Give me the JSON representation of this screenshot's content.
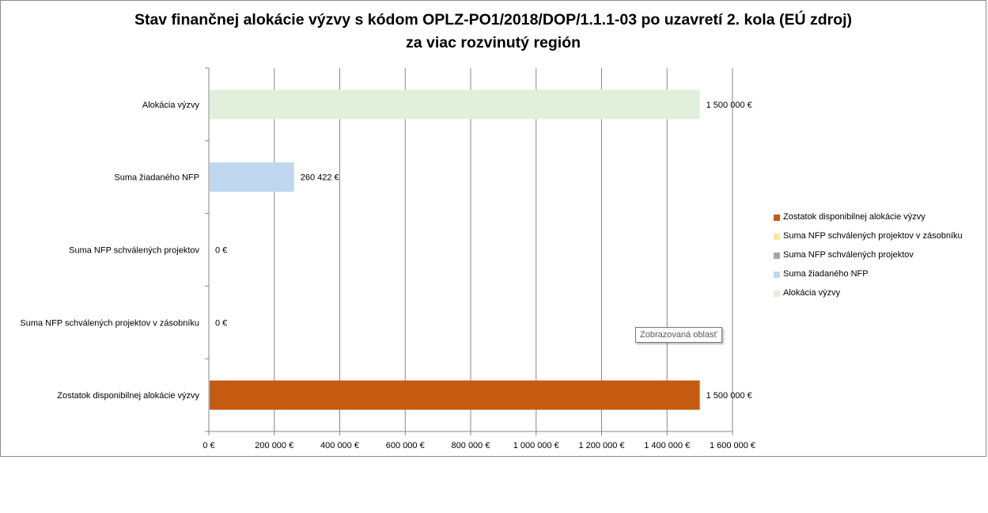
{
  "chart_data": {
    "type": "bar",
    "orientation": "horizontal",
    "title": "Stav finančnej alokácie výzvy s kódom OPLZ-PO1/2018/DOP/1.1.1-03 po uzavretí 2. kola (EÚ zdroj)",
    "subtitle": "za viac rozvinutý región",
    "categories": [
      "Alokácia výzvy",
      "Suma žiadaného NFP",
      "Suma NFP schválených projektov",
      "Suma NFP schválených projektov v zásobníku",
      "Zostatok disponibilnej alokácie výzvy"
    ],
    "values": [
      1500000,
      260422,
      0,
      0,
      1500000
    ],
    "value_labels": [
      "1 500 000 €",
      "260 422 €",
      "0 €",
      "0 €",
      "1 500 000 €"
    ],
    "colors": [
      "#e2efda",
      "#bdd7ee",
      "#a5a5a5",
      "#ffe699",
      "#c55a11"
    ],
    "xlim": [
      0,
      1600000
    ],
    "x_ticks": [
      0,
      200000,
      400000,
      600000,
      800000,
      1000000,
      1200000,
      1400000,
      1600000
    ],
    "x_tick_labels": [
      "0 €",
      "200 000 €",
      "400 000 €",
      "600 000 €",
      "800 000 €",
      "1 000 000 €",
      "1 200 000 €",
      "1 400 000 €",
      "1 600 000 €"
    ],
    "grid": true,
    "legend_position": "right",
    "legend": [
      {
        "label": "Zostatok disponibilnej alokácie výzvy",
        "color": "#c55a11"
      },
      {
        "label": "Suma NFP schválených projektov v zásobníku",
        "color": "#ffe699"
      },
      {
        "label": "Suma NFP schválených projektov",
        "color": "#a5a5a5"
      },
      {
        "label": "Suma žiadaného NFP",
        "color": "#bdd7ee"
      },
      {
        "label": "Alokácia výzvy",
        "color": "#e2efda"
      }
    ]
  },
  "tooltip": "Zobrazovaná oblasť"
}
